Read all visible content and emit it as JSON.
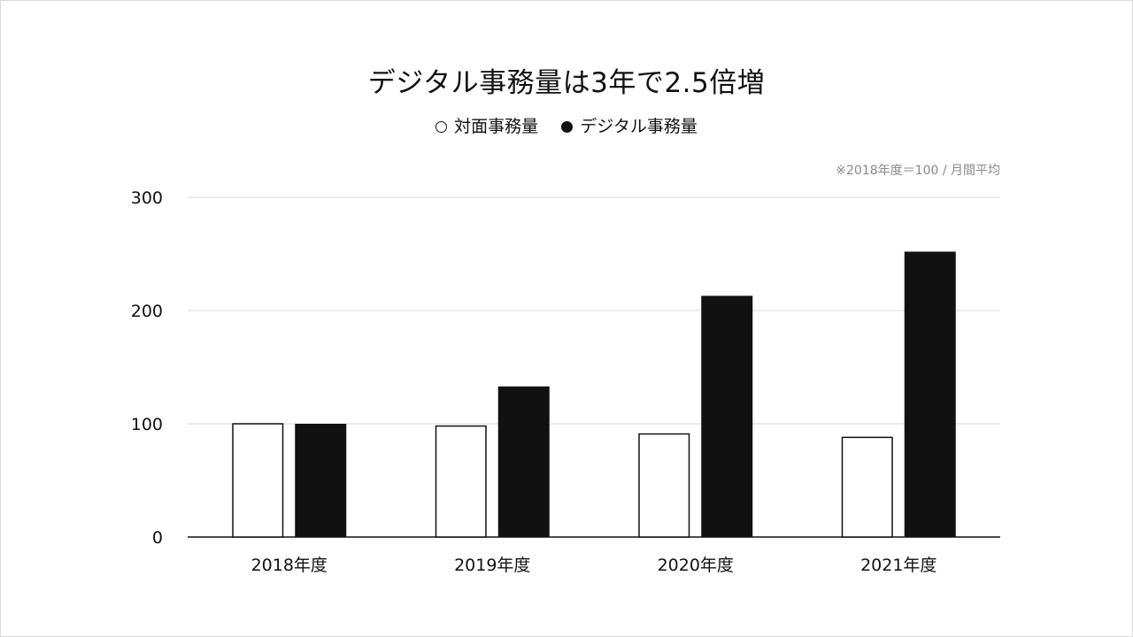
{
  "colors": {
    "background": "#ffffff",
    "bar_open_fill": "#ffffff",
    "bar_open_stroke": "#111111",
    "bar_filled": "#111111",
    "gridline": "#e6e6e6",
    "axis": "#111111",
    "note": "#888888"
  },
  "note": "※2018年度＝100 / 月間平均",
  "chart_data": {
    "type": "bar",
    "title": "デジタル事務量は3年で2.5倍増",
    "categories": [
      "2018年度",
      "2019年度",
      "2020年度",
      "2021年度"
    ],
    "series": [
      {
        "name": "対面事務量",
        "style": "open",
        "values": [
          100,
          98,
          91,
          88
        ]
      },
      {
        "name": "デジタル事務量",
        "style": "filled",
        "values": [
          100,
          133,
          213,
          252
        ]
      }
    ],
    "legend": [
      {
        "marker": "○",
        "label": "対面事務量"
      },
      {
        "marker": "●",
        "label": "デジタル事務量"
      }
    ],
    "ylim": [
      0,
      300
    ],
    "yticks": [
      0,
      100,
      200,
      300
    ],
    "xlabel": "",
    "ylabel": "",
    "grid": true,
    "legend_position": "top-center"
  }
}
